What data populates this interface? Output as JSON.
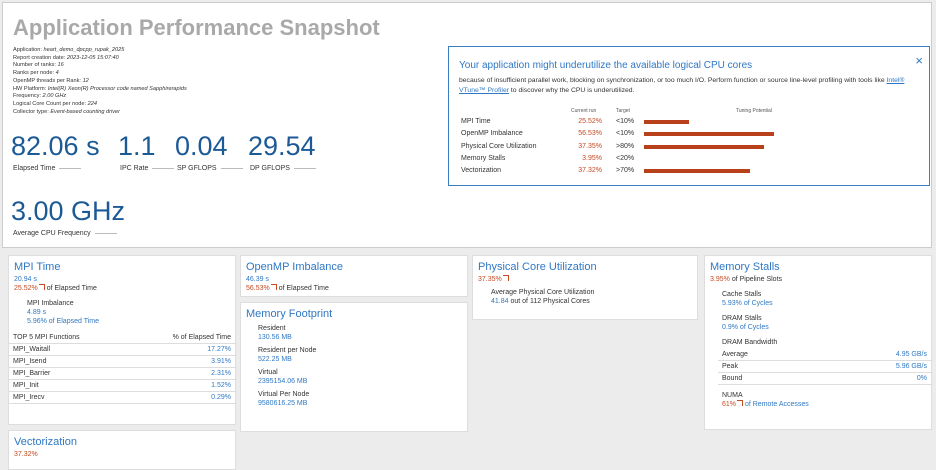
{
  "header": {
    "title": "Application Performance Snapshot"
  },
  "info": [
    [
      "Application:",
      "heart_demo_dpcpp_rupak_2025"
    ],
    [
      "Report creation date:",
      "2023-12-05 15:07:40"
    ],
    [
      "Number of ranks:",
      "16"
    ],
    [
      "Ranks per node:",
      "4"
    ],
    [
      "OpenMP threads per Rank:",
      "12"
    ],
    [
      "HW Platform:",
      "Intel(R) Xeon(R) Processor code named Sapphirerapids"
    ],
    [
      "Frequency:",
      "2.00 GHz"
    ],
    [
      "Logical Core Count per node:",
      "224"
    ],
    [
      "Collector type:",
      "Event-based counting driver"
    ]
  ],
  "metrics": [
    {
      "value": "82.06 s",
      "label": "Elapsed Time"
    },
    {
      "value": "1.1",
      "label": "IPC Rate"
    },
    {
      "value": "0.04",
      "label": "SP GFLOPS"
    },
    {
      "value": "29.54",
      "label": "DP GFLOPS"
    }
  ],
  "frequency": {
    "value": "3.00 GHz",
    "label": "Average CPU Frequency"
  },
  "popup": {
    "title": "Your application might underutilize the available logical CPU cores",
    "text_before": "because of insufficient parallel work, blocking on synchronization, or too much I/O. Perform function or source line-level profiling with tools like ",
    "link": "Intel® VTune™ Profiler",
    "text_after": " to discover why the CPU is underutilized.",
    "columns": [
      "Current run",
      "Target",
      "Tuning Potential"
    ],
    "rows": [
      {
        "name": "MPI Time",
        "current": "25.52%",
        "target": "<10%",
        "potential": 28
      },
      {
        "name": "OpenMP Imbalance",
        "current": "56.53%",
        "target": "<10%",
        "potential": 81
      },
      {
        "name": "Physical Core Utilization",
        "current": "37.35%",
        "target": ">80%",
        "potential": 75
      },
      {
        "name": "Memory Stalls",
        "current": "3.95%",
        "target": "<20%",
        "potential": null
      },
      {
        "name": "Vectorization",
        "current": "37.32%",
        "target": ">70%",
        "potential": 66
      }
    ]
  },
  "mpi": {
    "title": "MPI Time",
    "value": "20.94 s",
    "pct": "25.52%",
    "pct_text": "of Elapsed Time",
    "imbalance": {
      "title": "MPI Imbalance",
      "value": "4.89 s",
      "pct_text": "5.96% of Elapsed Time"
    },
    "table": {
      "header": [
        "TOP 5 MPI Functions",
        "% of Elapsed Time"
      ],
      "rows": [
        [
          "MPI_Waitall",
          "17.27%"
        ],
        [
          "MPI_Isend",
          "3.91%"
        ],
        [
          "MPI_Barrier",
          "2.31%"
        ],
        [
          "MPI_Init",
          "1.52%"
        ],
        [
          "MPI_Irecv",
          "0.29%"
        ]
      ]
    }
  },
  "openmp": {
    "title": "OpenMP Imbalance",
    "value": "46.39 s",
    "pct": "56.53%",
    "pct_text": "of Elapsed Time"
  },
  "memory_footprint": {
    "title": "Memory Footprint",
    "items": [
      [
        "Resident",
        "130.56 MB"
      ],
      [
        "Resident per Node",
        "522.25 MB"
      ],
      [
        "Virtual",
        "2395154.06 MB"
      ],
      [
        "Virtual Per Node",
        "9580616.25 MB"
      ]
    ]
  },
  "physical": {
    "title": "Physical Core Utilization",
    "pct": "37.35%",
    "sub_title": "Average Physical Core Utilization",
    "value": "41.84",
    "value_text": "out of 112 Physical Cores"
  },
  "memory_stalls": {
    "title": "Memory Stalls",
    "pct": "3.95%",
    "pct_text": "of Pipeline Slots",
    "cache": {
      "title": "Cache Stalls",
      "value": "5.93%",
      "text": "of Cycles"
    },
    "dram": {
      "title": "DRAM Stalls",
      "value": "0.9%",
      "text": "of Cycles"
    },
    "bandwidth": {
      "title": "DRAM Bandwidth",
      "rows": [
        [
          "Average",
          "4.95 GB/s"
        ],
        [
          "Peak",
          "5.96 GB/s"
        ],
        [
          "Bound",
          "0%"
        ]
      ]
    },
    "numa": {
      "title": "NUMA",
      "value": "61%",
      "text": "of Remote Accesses"
    }
  },
  "vectorization": {
    "title": "Vectorization",
    "pct": "37.32%"
  }
}
